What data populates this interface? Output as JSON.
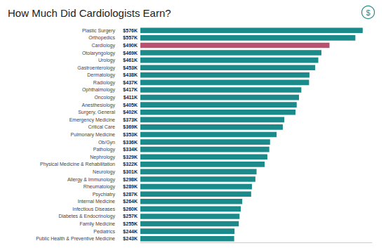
{
  "chart_data": {
    "type": "bar",
    "orientation": "horizontal",
    "title": "How Much Did Cardiologists Earn?",
    "categories": [
      "Public Health & Preventive Medicine",
      "Pediatrics",
      "Family Medicine",
      "Diabetes & Endocrinology",
      "Infectious Diseases",
      "Internal Medicine",
      "Psychiatry",
      "Rheumatology",
      "Allergy & Immunology",
      "Neurology",
      "Physical Medicine & Rehabilitation",
      "Nephrology",
      "Pathology",
      "Ob/Gyn",
      "Pulmonary Medicine",
      "Critical Care",
      "Emergency Medicine",
      "Surgery, General",
      "Anesthesiology",
      "Oncology",
      "Ophthalmology",
      "Radiology",
      "Dermatology",
      "Gastroenterology",
      "Urology",
      "Otolaryngology",
      "Cardiology",
      "Orthopedics",
      "Plastic Surgery"
    ],
    "values": [
      243,
      244,
      255,
      257,
      260,
      264,
      287,
      289,
      298,
      301,
      322,
      329,
      334,
      336,
      353,
      369,
      373,
      402,
      405,
      411,
      417,
      437,
      438,
      453,
      461,
      469,
      490,
      557,
      576
    ],
    "value_labels": [
      "$243K",
      "$244K",
      "$255K",
      "$257K",
      "$260K",
      "$264K",
      "$287K",
      "$289K",
      "$298K",
      "$301K",
      "$322K",
      "$329K",
      "$334K",
      "$336K",
      "$353K",
      "$369K",
      "$373K",
      "$402K",
      "$405K",
      "$411K",
      "$417K",
      "$437K",
      "$438K",
      "$453K",
      "$461K",
      "$469K",
      "$490K",
      "$557K",
      "$576K"
    ],
    "colors": [
      "#1b8a8a",
      "#1b8a8a",
      "#1b8a8a",
      "#1b8a8a",
      "#1b8a8a",
      "#1b8a8a",
      "#1b8a8a",
      "#1b8a8a",
      "#1b8a8a",
      "#1b8a8a",
      "#1b8a8a",
      "#1b8a8a",
      "#1b8a8a",
      "#1b8a8a",
      "#1b8a8a",
      "#1b8a8a",
      "#1b8a8a",
      "#1b8a8a",
      "#1b8a8a",
      "#1b8a8a",
      "#1b8a8a",
      "#1b8a8a",
      "#1b8a8a",
      "#1b8a8a",
      "#1b8a8a",
      "#1b8a8a",
      "#b85070",
      "#1b8a8a",
      "#1b8a8a"
    ],
    "data_labels": true,
    "xlim": [
      0,
      600
    ],
    "grid": false,
    "tick_labels": "y",
    "annotations": [
      "$"
    ]
  }
}
